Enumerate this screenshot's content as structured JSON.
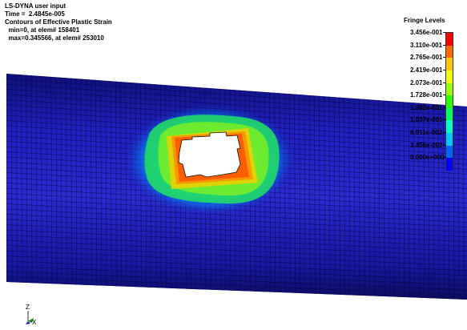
{
  "header": {
    "line1": "LS-DYNA user input",
    "line2": "Time =  2.4845e-005",
    "line3": "Contours of Effective Plastic Strain",
    "line4": "  min=0, at elem# 158401",
    "line5": "  max=0.345566, at elem# 253010"
  },
  "legend": {
    "title": "Fringe Levels",
    "levels": [
      {
        "label": "3.456e-001",
        "color": "#ff0000"
      },
      {
        "label": "3.110e-001",
        "color": "#ff6a00"
      },
      {
        "label": "2.765e-001",
        "color": "#ffc800"
      },
      {
        "label": "2.419e-001",
        "color": "#f0ff00"
      },
      {
        "label": "2.073e-001",
        "color": "#9cff00"
      },
      {
        "label": "1.728e-001",
        "color": "#2eff00"
      },
      {
        "label": "1.382e-001",
        "color": "#00ff5a"
      },
      {
        "label": "1.037e-001",
        "color": "#00ffc8"
      },
      {
        "label": "6.911e-002",
        "color": "#00c8ff"
      },
      {
        "label": "3.456e-002",
        "color": "#0064ff"
      },
      {
        "label": "0.000e+000",
        "color": "#0000ff"
      }
    ]
  },
  "triad": {
    "z_label": "Z",
    "x_label": "X"
  },
  "colors": {
    "pipe_base": "#1a1ab8",
    "mesh": "#050538",
    "hole": "#ffffff"
  }
}
